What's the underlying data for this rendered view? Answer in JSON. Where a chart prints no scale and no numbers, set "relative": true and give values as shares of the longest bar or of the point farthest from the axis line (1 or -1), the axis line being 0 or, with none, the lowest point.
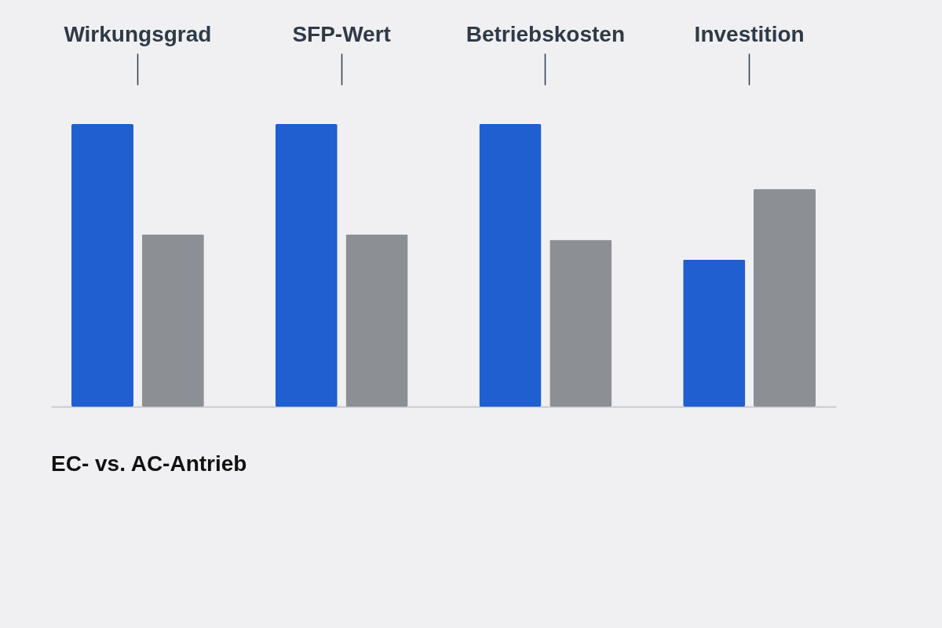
{
  "chart_data": {
    "type": "bar",
    "title": "EC- vs. AC-Antrieb",
    "relative": true,
    "legend": false,
    "categories": [
      "Wirkungsgrad",
      "SFP-Wert",
      "Betriebskosten",
      "Investition"
    ],
    "series": [
      {
        "color": "#1f5fd0",
        "values": [
          1,
          1,
          1,
          0.52
        ]
      },
      {
        "color": "#8c8f94",
        "values": [
          0.61,
          0.61,
          0.59,
          0.77
        ]
      }
    ]
  }
}
